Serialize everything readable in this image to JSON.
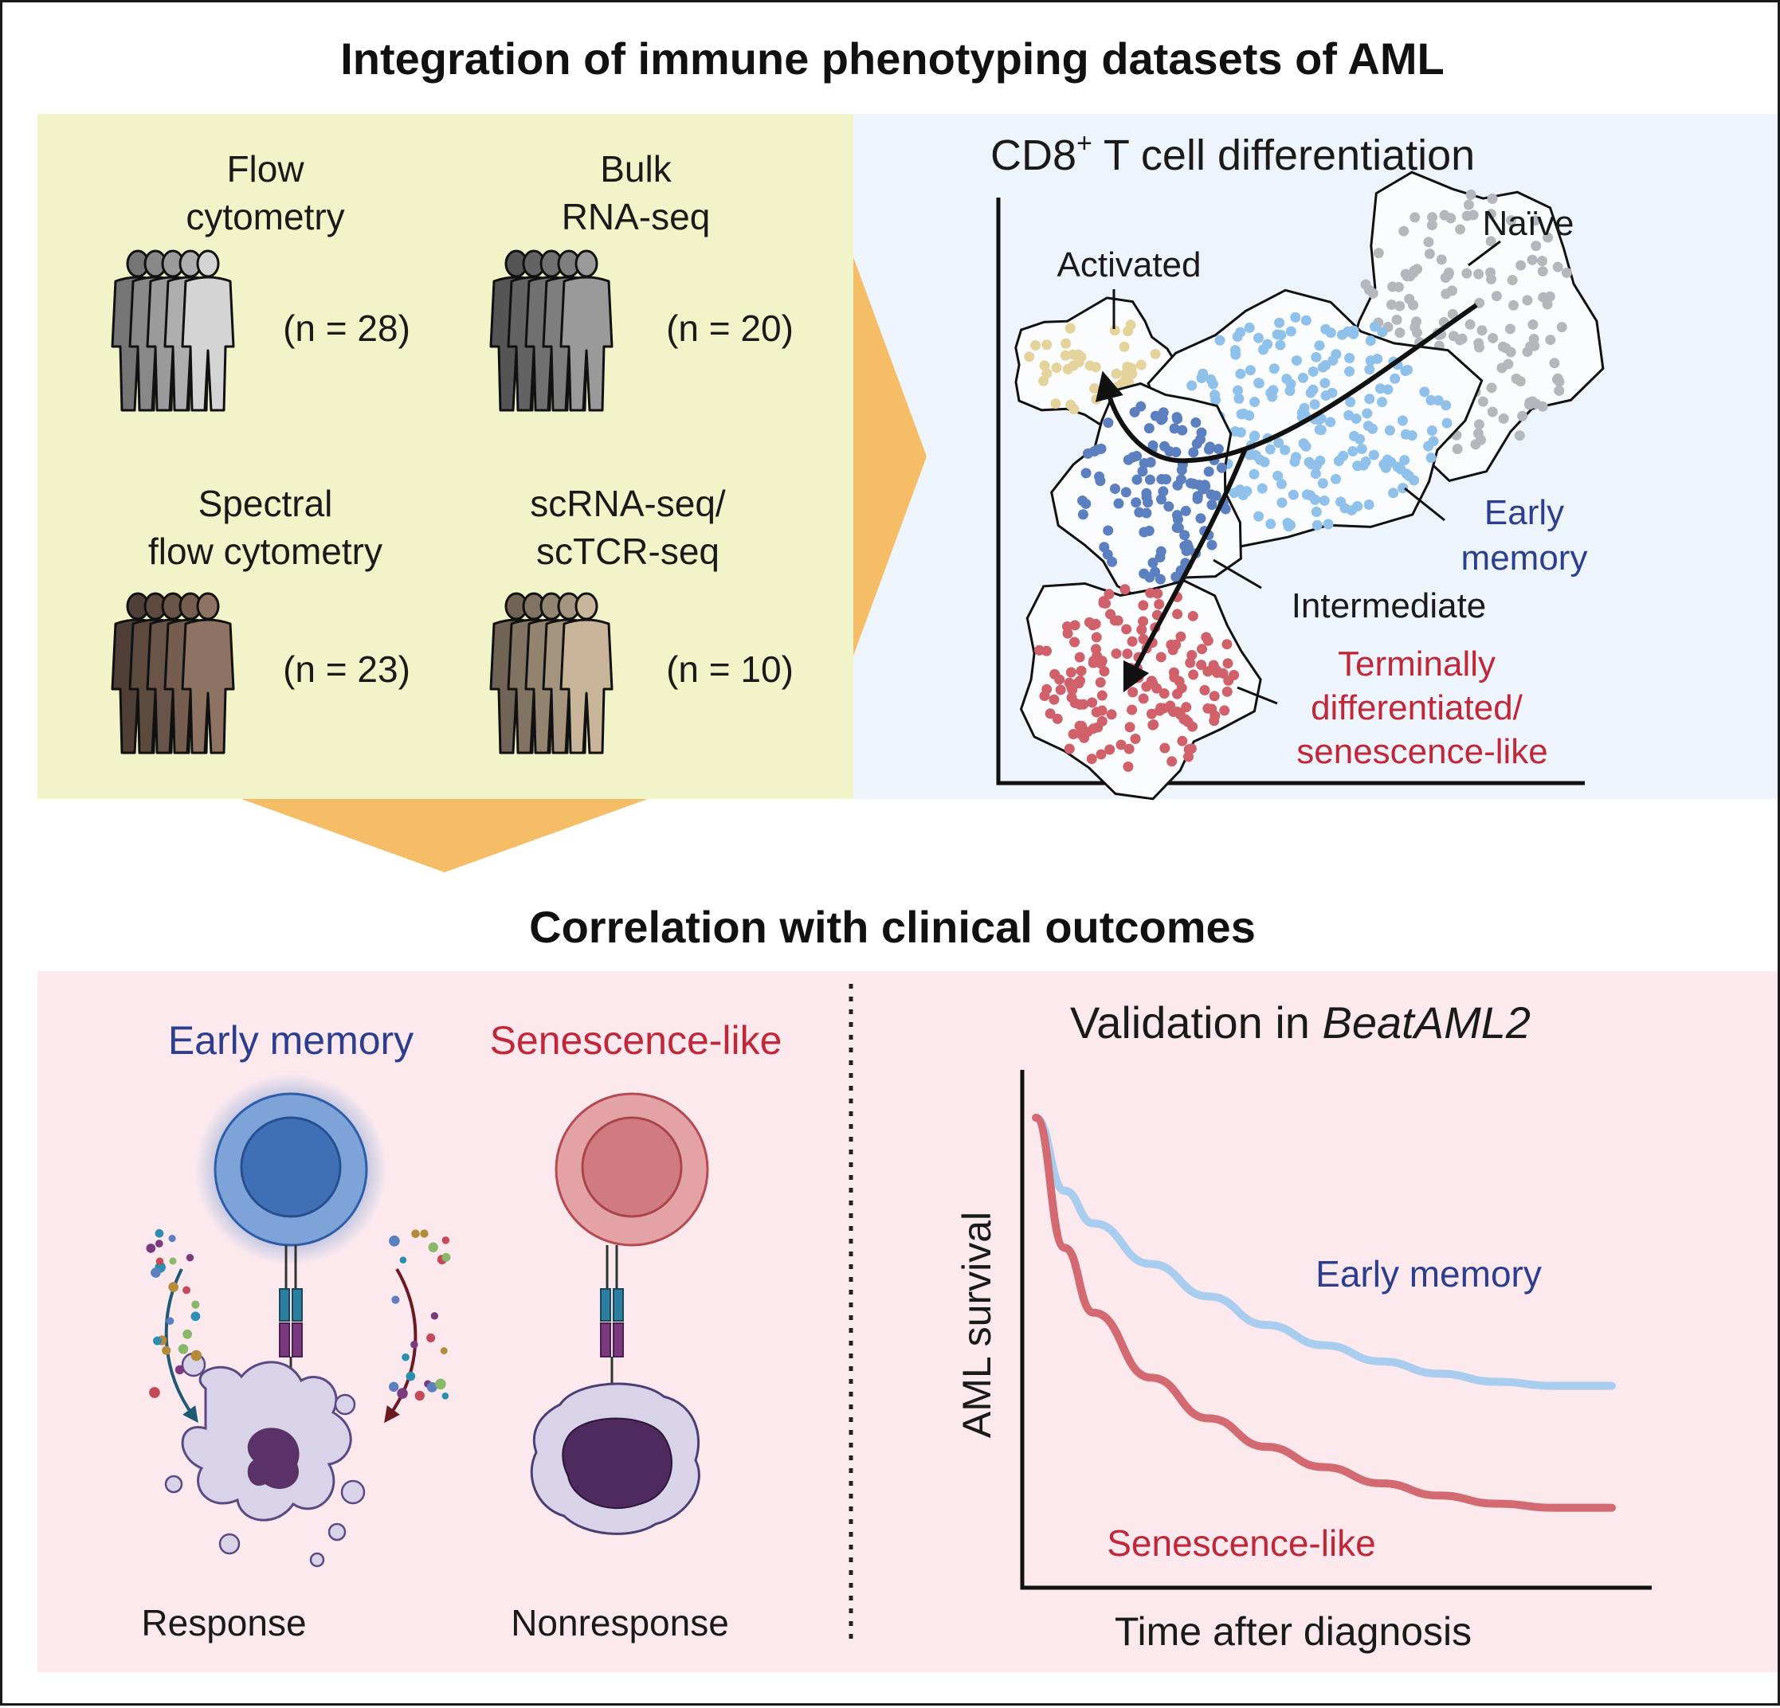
{
  "top_title": "Integration of immune phenotyping datasets of AML",
  "datasets": [
    {
      "name_line1": "Flow",
      "name_line2": "cytometry",
      "n_label": "(n = 28)",
      "color": "#d4d4d4"
    },
    {
      "name_line1": "Bulk",
      "name_line2": "RNA-seq",
      "n_label": "(n = 20)",
      "color": "#9a9a9a"
    },
    {
      "name_line1": "Spectral",
      "name_line2": "flow cytometry",
      "n_label": "(n = 23)",
      "color": "#8f7362"
    },
    {
      "name_line1": "scRNA-seq/",
      "name_line2": "scTCR-seq",
      "n_label": "(n = 10)",
      "color": "#c9b59a"
    }
  ],
  "differentiation": {
    "title": "CD8",
    "title_sup": "+",
    "title_rest": " T cell differentiation",
    "clusters": [
      {
        "label": "Naïve",
        "color": "#b4b8bd"
      },
      {
        "label": "Activated",
        "color": "#e4d39a"
      },
      {
        "label_line1": "Early",
        "label_line2": "memory",
        "color": "#8fc1ea",
        "label_color": "#2d3e8e"
      },
      {
        "label": "Intermediate",
        "color": "#5b7fbf"
      },
      {
        "label_line1": "Terminally",
        "label_line2": "differentiated/",
        "label_line3": "senescence-like",
        "color": "#d0606a",
        "label_color": "#c0283a"
      }
    ]
  },
  "bottom_title": "Correlation with clinical outcomes",
  "cells": {
    "early_label": "Early memory",
    "senescence_label": "Senescence-like",
    "response_label": "Response",
    "nonresponse_label": "Nonresponse",
    "early_color": "#2d3e8e",
    "senescence_color": "#c0283a"
  },
  "validation": {
    "title_prefix": "Validation in ",
    "title_italic": "BeatAML2"
  },
  "chart_data": {
    "type": "line",
    "title": "Validation in BeatAML2",
    "xlabel": "Time after diagnosis",
    "ylabel": "AML survival",
    "series": [
      {
        "name": "Early memory",
        "color": "#a9cdef",
        "x": [
          0,
          0.05,
          0.1,
          0.2,
          0.3,
          0.4,
          0.5,
          0.6,
          0.7,
          0.8,
          0.9,
          1.0
        ],
        "values": [
          1.0,
          0.82,
          0.74,
          0.64,
          0.56,
          0.49,
          0.44,
          0.4,
          0.37,
          0.35,
          0.34,
          0.34
        ]
      },
      {
        "name": "Senescence-like",
        "color": "#d36a72",
        "x": [
          0,
          0.05,
          0.1,
          0.2,
          0.3,
          0.4,
          0.5,
          0.6,
          0.7,
          0.8,
          0.9,
          1.0
        ],
        "values": [
          1.0,
          0.68,
          0.52,
          0.36,
          0.26,
          0.19,
          0.14,
          0.1,
          0.07,
          0.05,
          0.04,
          0.04
        ]
      }
    ],
    "ylim": [
      0,
      1
    ],
    "xlim": [
      0,
      1
    ],
    "grid": false,
    "legend": "inline"
  }
}
